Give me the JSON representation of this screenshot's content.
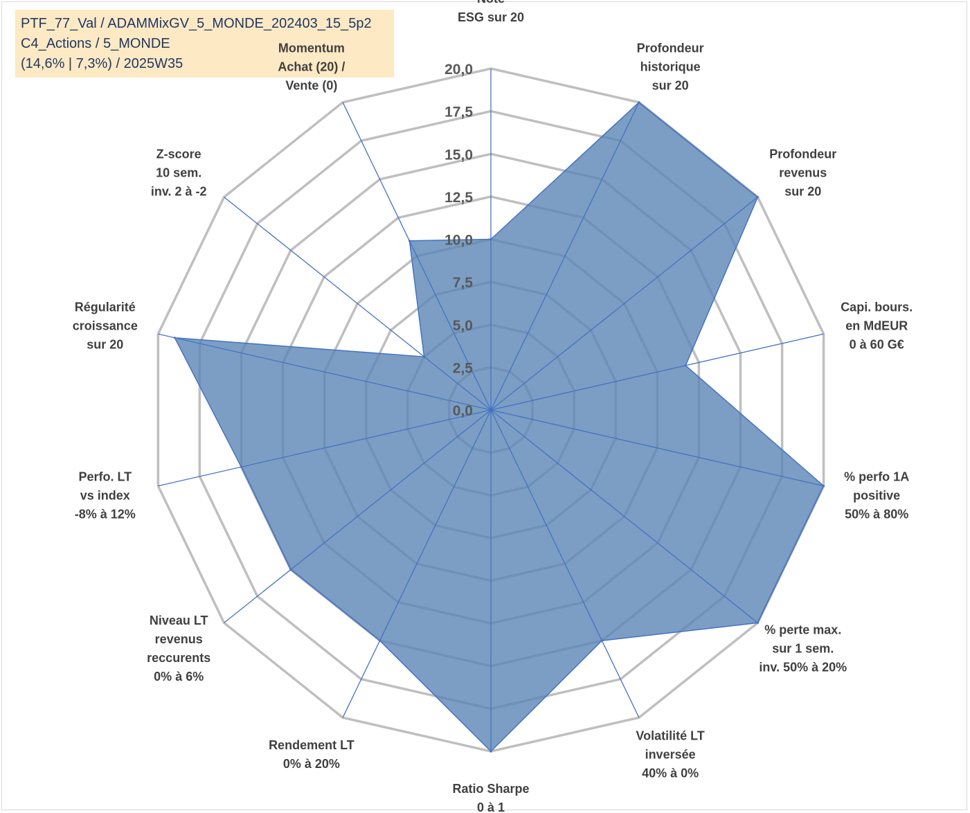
{
  "info": {
    "line1": "PTF_77_Val / ADAMMixGV_5_MONDE_202403_15_5p2",
    "line2": "C4_Actions / 5_MONDE",
    "line3": "(14,6% | 7,3%) / 2025W35"
  },
  "colors": {
    "fill": "#5b86b5",
    "stroke": "#4472c4",
    "grid": "#bfbfbf",
    "spoke": "#4472c4",
    "accent_label": "#b3a588"
  },
  "chart_data": {
    "type": "radar",
    "title": "",
    "rmin": 0,
    "rmax": 20,
    "tick_labels": [
      "0,0",
      "2,5",
      "5,0",
      "7,5",
      "10,0",
      "12,5",
      "15,0",
      "17,5",
      "20,0"
    ],
    "categories": [
      {
        "lines": [
          "Note",
          "ESG sur 20"
        ]
      },
      {
        "lines": [
          "Profondeur",
          "historique",
          "sur 20"
        ]
      },
      {
        "lines": [
          "Profondeur",
          "revenus",
          "sur 20"
        ]
      },
      {
        "lines": [
          "Capi. bours.",
          "en MdEUR",
          "0 à 60 G€"
        ]
      },
      {
        "lines": [
          "% perfo 1A",
          "positive",
          "50% à 80%"
        ]
      },
      {
        "lines": [
          "% perte max.",
          "sur 1 sem.",
          "inv. 50% à 20%"
        ]
      },
      {
        "lines": [
          "Volatilité LT",
          "inversée",
          "40% à 0%"
        ]
      },
      {
        "lines": [
          "Ratio Sharpe",
          "0 à 1"
        ]
      },
      {
        "lines": [
          "Rendement LT",
          "0% à 20%"
        ]
      },
      {
        "lines": [
          "Niveau LT",
          "revenus",
          "reccurents",
          "0% à 6%"
        ]
      },
      {
        "lines": [
          "Perfo. LT",
          "vs index",
          "-8% à 12%"
        ]
      },
      {
        "lines": [
          "Régularité",
          "croissance",
          "sur 20"
        ]
      },
      {
        "lines": [
          "Z-score",
          "10 sem.",
          "inv. 2 à -2"
        ]
      },
      {
        "lines": [
          "Momentum",
          "Achat (20) /",
          "Vente (0)"
        ],
        "accent_first_line": true
      }
    ],
    "series": [
      {
        "values": [
          10.0,
          20.0,
          20.0,
          11.7,
          20.0,
          20.0,
          15.0,
          20.0,
          15.0,
          15.0,
          15.0,
          19.0,
          5.0,
          11.0
        ]
      }
    ],
    "grid": true,
    "legend": "none"
  }
}
